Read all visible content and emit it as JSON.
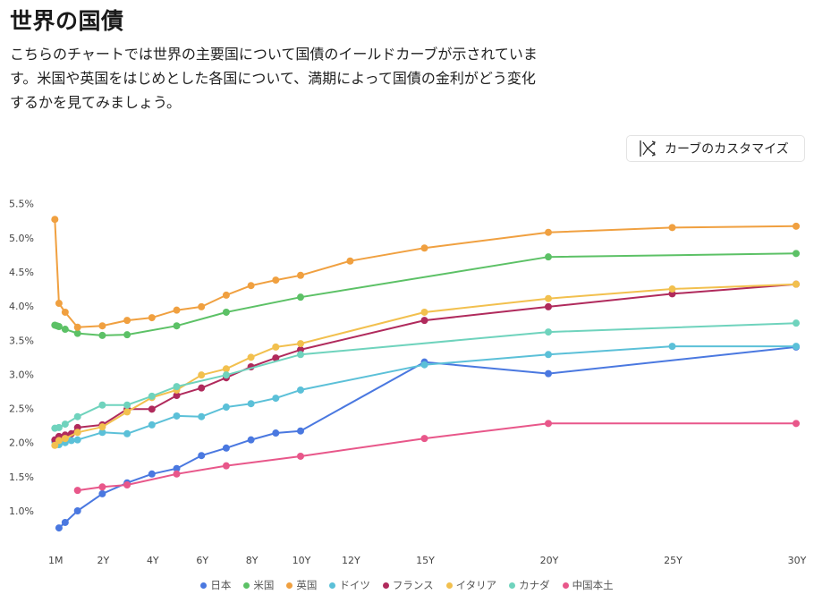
{
  "header": {
    "title": "世界の国債",
    "description": "こちらのチャートでは世界の主要国について国債のイールドカーブが示されています。米国や英国をはじめとした各国について、満期によって国債の金利がどう変化するかを見てみましょう。"
  },
  "toolbar": {
    "customize_label": "カーブのカスタマイズ",
    "customize_icon": "curve-customize-icon"
  },
  "chart_data": {
    "type": "line",
    "title": "",
    "xlabel": "",
    "ylabel": "",
    "x_unit": "years",
    "xlim": [
      0,
      30
    ],
    "ylim": [
      0.5,
      5.6
    ],
    "y_ticks": [
      1.0,
      1.5,
      2.0,
      2.5,
      3.0,
      3.5,
      4.0,
      4.5,
      5.0,
      5.5
    ],
    "y_tick_labels": [
      "1.0%",
      "1.5%",
      "2.0%",
      "2.5%",
      "3.0%",
      "3.5%",
      "4.0%",
      "4.5%",
      "5.0%",
      "5.5%"
    ],
    "x_ticks": [
      0.0833,
      2,
      4,
      6,
      8,
      10,
      12,
      15,
      20,
      25,
      30
    ],
    "x_tick_labels": [
      "1M",
      "2Y",
      "4Y",
      "6Y",
      "8Y",
      "10Y",
      "12Y",
      "15Y",
      "20Y",
      "25Y",
      "30Y"
    ],
    "grid": false,
    "legend_position": "bottom-center",
    "series": [
      {
        "name": "日本",
        "color": "#4a78e0",
        "x": [
          0.25,
          0.5,
          1,
          2,
          3,
          4,
          5,
          6,
          7,
          8,
          9,
          10,
          15,
          20,
          30
        ],
        "values": [
          0.75,
          0.83,
          1.0,
          1.25,
          1.41,
          1.54,
          1.62,
          1.81,
          1.92,
          2.04,
          2.14,
          2.17,
          3.18,
          3.01,
          3.4
        ]
      },
      {
        "name": "米国",
        "color": "#5cc166",
        "x": [
          0.0833,
          0.1667,
          0.25,
          0.5,
          1,
          2,
          3,
          5,
          7,
          10,
          20,
          30
        ],
        "values": [
          3.72,
          3.71,
          3.7,
          3.66,
          3.6,
          3.57,
          3.58,
          3.71,
          3.91,
          4.13,
          4.72,
          4.77
        ]
      },
      {
        "name": "英国",
        "color": "#f0a040",
        "x": [
          0.0833,
          0.25,
          0.5,
          1,
          2,
          3,
          4,
          5,
          6,
          7,
          8,
          9,
          10,
          12,
          15,
          20,
          25,
          30
        ],
        "values": [
          5.27,
          4.04,
          3.91,
          3.69,
          3.71,
          3.79,
          3.83,
          3.94,
          3.99,
          4.16,
          4.3,
          4.38,
          4.45,
          4.66,
          4.85,
          5.08,
          5.15,
          5.17
        ]
      },
      {
        "name": "ドイツ",
        "color": "#5bc0d8",
        "x": [
          0.0833,
          0.25,
          0.5,
          0.75,
          1,
          2,
          3,
          4,
          5,
          6,
          7,
          8,
          9,
          10,
          15,
          20,
          25,
          30
        ],
        "values": [
          2.01,
          1.97,
          2.0,
          2.03,
          2.04,
          2.15,
          2.13,
          2.26,
          2.39,
          2.38,
          2.52,
          2.57,
          2.65,
          2.77,
          3.14,
          3.29,
          3.41,
          3.41
        ]
      },
      {
        "name": "フランス",
        "color": "#b02a5c",
        "x": [
          0.0833,
          0.25,
          0.5,
          0.75,
          1,
          2,
          3,
          4,
          5,
          6,
          7,
          8,
          9,
          10,
          15,
          20,
          25,
          30
        ],
        "values": [
          2.04,
          2.09,
          2.11,
          2.13,
          2.22,
          2.26,
          2.49,
          2.49,
          2.69,
          2.8,
          2.95,
          3.11,
          3.24,
          3.36,
          3.79,
          3.99,
          4.18,
          4.32
        ]
      },
      {
        "name": "イタリア",
        "color": "#f2c04e",
        "x": [
          0.0833,
          0.25,
          0.5,
          1,
          2,
          3,
          4,
          5,
          6,
          7,
          8,
          9,
          10,
          15,
          20,
          25,
          30
        ],
        "values": [
          1.96,
          2.03,
          2.06,
          2.15,
          2.23,
          2.45,
          2.66,
          2.77,
          2.99,
          3.08,
          3.25,
          3.4,
          3.45,
          3.91,
          4.11,
          4.25,
          4.32
        ]
      },
      {
        "name": "カナダ",
        "color": "#6fd3bd",
        "x": [
          0.0833,
          0.25,
          0.5,
          1,
          2,
          3,
          4,
          5,
          7,
          10,
          20,
          30
        ],
        "values": [
          2.21,
          2.22,
          2.27,
          2.38,
          2.55,
          2.55,
          2.68,
          2.82,
          2.99,
          3.29,
          3.62,
          3.75
        ]
      },
      {
        "name": "中国本土",
        "color": "#e8578a",
        "x": [
          1,
          2,
          3,
          5,
          7,
          10,
          15,
          20,
          30
        ],
        "values": [
          1.3,
          1.35,
          1.38,
          1.54,
          1.66,
          1.8,
          2.06,
          2.28,
          2.28
        ]
      }
    ]
  }
}
